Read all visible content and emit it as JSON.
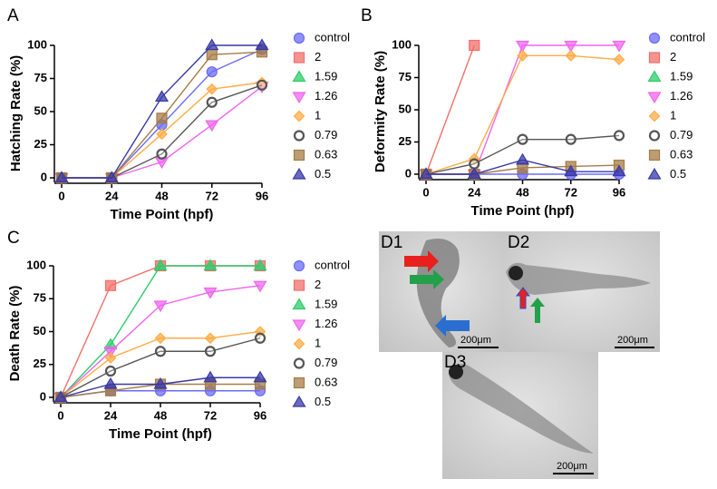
{
  "chart_data": [
    {
      "type": "line",
      "label": "A",
      "ylabel": "Hatching Rate (%)",
      "xlabel": "Time Point (hpf)",
      "x": [
        0,
        24,
        48,
        72,
        96
      ],
      "xlim": [
        0,
        96
      ],
      "xticks": [
        0,
        24,
        48,
        72,
        96
      ],
      "ylim": [
        0,
        100
      ],
      "yticks": [
        0,
        25,
        50,
        75,
        100
      ],
      "series": [
        {
          "name": "control",
          "color": "#6b6bf5",
          "marker": "circle",
          "values": [
            0,
            0,
            40,
            80,
            97
          ]
        },
        {
          "name": "2",
          "color": "#f26f6a",
          "marker": "square",
          "values": [
            0,
            0,
            null,
            null,
            null
          ]
        },
        {
          "name": "1.59",
          "color": "#2ecc6a",
          "marker": "triangle",
          "values": [
            0,
            0,
            null,
            null,
            null
          ]
        },
        {
          "name": "1.26",
          "color": "#ee66ee",
          "marker": "triangle-down",
          "values": [
            0,
            0,
            12,
            40,
            69
          ]
        },
        {
          "name": "1",
          "color": "#ffac47",
          "marker": "diamond",
          "values": [
            0,
            0,
            33,
            67,
            72
          ]
        },
        {
          "name": "0.79",
          "color": "#555555",
          "marker": "open-circle",
          "values": [
            0,
            0,
            18,
            57,
            70
          ]
        },
        {
          "name": "0.63",
          "color": "#a57c45",
          "marker": "square",
          "values": [
            0,
            0,
            45,
            93,
            95
          ]
        },
        {
          "name": "0.5",
          "color": "#3838a8",
          "marker": "triangle",
          "values": [
            0,
            0,
            61,
            100,
            100
          ]
        }
      ]
    },
    {
      "type": "line",
      "label": "B",
      "ylabel": "Deformity Rate (%)",
      "xlabel": "Time Point (hpf)",
      "x": [
        0,
        24,
        48,
        72,
        96
      ],
      "xlim": [
        0,
        96
      ],
      "xticks": [
        0,
        24,
        48,
        72,
        96
      ],
      "ylim": [
        0,
        100
      ],
      "yticks": [
        0,
        25,
        50,
        75,
        100
      ],
      "series": [
        {
          "name": "control",
          "color": "#6b6bf5",
          "marker": "circle",
          "values": [
            0,
            0,
            0,
            0,
            0
          ]
        },
        {
          "name": "2",
          "color": "#f26f6a",
          "marker": "square",
          "values": [
            0,
            100,
            null,
            null,
            null
          ]
        },
        {
          "name": "1.59",
          "color": "#2ecc6a",
          "marker": "triangle",
          "values": [
            0,
            0,
            null,
            null,
            null
          ]
        },
        {
          "name": "1.26",
          "color": "#ee66ee",
          "marker": "triangle-down",
          "values": [
            0,
            0,
            100,
            100,
            100
          ]
        },
        {
          "name": "1",
          "color": "#ffac47",
          "marker": "diamond",
          "values": [
            0,
            12,
            92,
            92,
            89
          ]
        },
        {
          "name": "0.79",
          "color": "#555555",
          "marker": "open-circle",
          "values": [
            0,
            8,
            27,
            27,
            30
          ]
        },
        {
          "name": "0.63",
          "color": "#a57c45",
          "marker": "square",
          "values": [
            0,
            0,
            5,
            6,
            7
          ]
        },
        {
          "name": "0.5",
          "color": "#3838a8",
          "marker": "triangle",
          "values": [
            0,
            0,
            11,
            2,
            2
          ]
        }
      ]
    },
    {
      "type": "line",
      "label": "C",
      "ylabel": "Death Rate (%)",
      "xlabel": "Time Point (hpf)",
      "x": [
        0,
        24,
        48,
        72,
        96
      ],
      "xlim": [
        0,
        96
      ],
      "xticks": [
        0,
        24,
        48,
        72,
        96
      ],
      "ylim": [
        0,
        100
      ],
      "yticks": [
        0,
        25,
        50,
        75,
        100
      ],
      "series": [
        {
          "name": "control",
          "color": "#6b6bf5",
          "marker": "circle",
          "values": [
            0,
            5,
            5,
            5,
            5
          ]
        },
        {
          "name": "2",
          "color": "#f26f6a",
          "marker": "square",
          "values": [
            0,
            85,
            100,
            100,
            100
          ]
        },
        {
          "name": "1.59",
          "color": "#2ecc6a",
          "marker": "triangle",
          "values": [
            0,
            40,
            100,
            100,
            100
          ]
        },
        {
          "name": "1.26",
          "color": "#ee66ee",
          "marker": "triangle-down",
          "values": [
            0,
            35,
            70,
            80,
            85
          ]
        },
        {
          "name": "1",
          "color": "#ffac47",
          "marker": "diamond",
          "values": [
            0,
            30,
            45,
            45,
            50
          ]
        },
        {
          "name": "0.79",
          "color": "#555555",
          "marker": "open-circle",
          "values": [
            0,
            20,
            35,
            35,
            45
          ]
        },
        {
          "name": "0.63",
          "color": "#a57c45",
          "marker": "square",
          "values": [
            0,
            5,
            10,
            10,
            10
          ]
        },
        {
          "name": "0.5",
          "color": "#3838a8",
          "marker": "triangle",
          "values": [
            0,
            10,
            10,
            15,
            15
          ]
        }
      ]
    }
  ],
  "images": [
    {
      "label": "D1",
      "scale": "200μm"
    },
    {
      "label": "D2",
      "scale": "200μm"
    },
    {
      "label": "D3",
      "scale": "200μm"
    }
  ]
}
